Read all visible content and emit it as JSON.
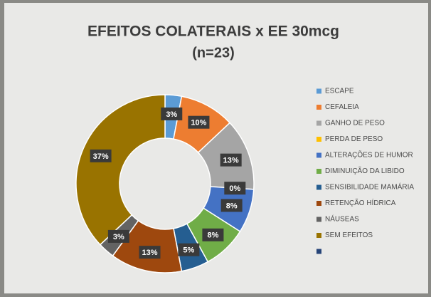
{
  "chart_data": {
    "type": "donut",
    "title": "EFEITOS COLATERAIS x EE 30mcg",
    "subtitle": "(n=23)",
    "categories": [
      "ESCAPE",
      "CEFALEIA",
      "GANHO DE PESO",
      "PERDA DE PESO",
      "ALTERAÇÕES DE HUMOR",
      "DIMINUIÇÃO DA LIBIDO",
      "SENSIBILIDADE MAMÁRIA",
      "RETENÇÃO HÍDRICA",
      "NÁUSEAS",
      "SEM EFEITOS",
      null
    ],
    "values": [
      3,
      10,
      13,
      0,
      8,
      8,
      5,
      13,
      3,
      37,
      null
    ],
    "value_labels": [
      "3%",
      "10%",
      "13%",
      "0%",
      "8%",
      "8%",
      "5%",
      "13%",
      "3%",
      "37%",
      null
    ],
    "colors": [
      "#5b9bd5",
      "#ed7d31",
      "#a5a5a5",
      "#ffc000",
      "#4472c4",
      "#70ad47",
      "#255e91",
      "#9e480e",
      "#636363",
      "#997300",
      "#264478"
    ],
    "legend": "right"
  }
}
